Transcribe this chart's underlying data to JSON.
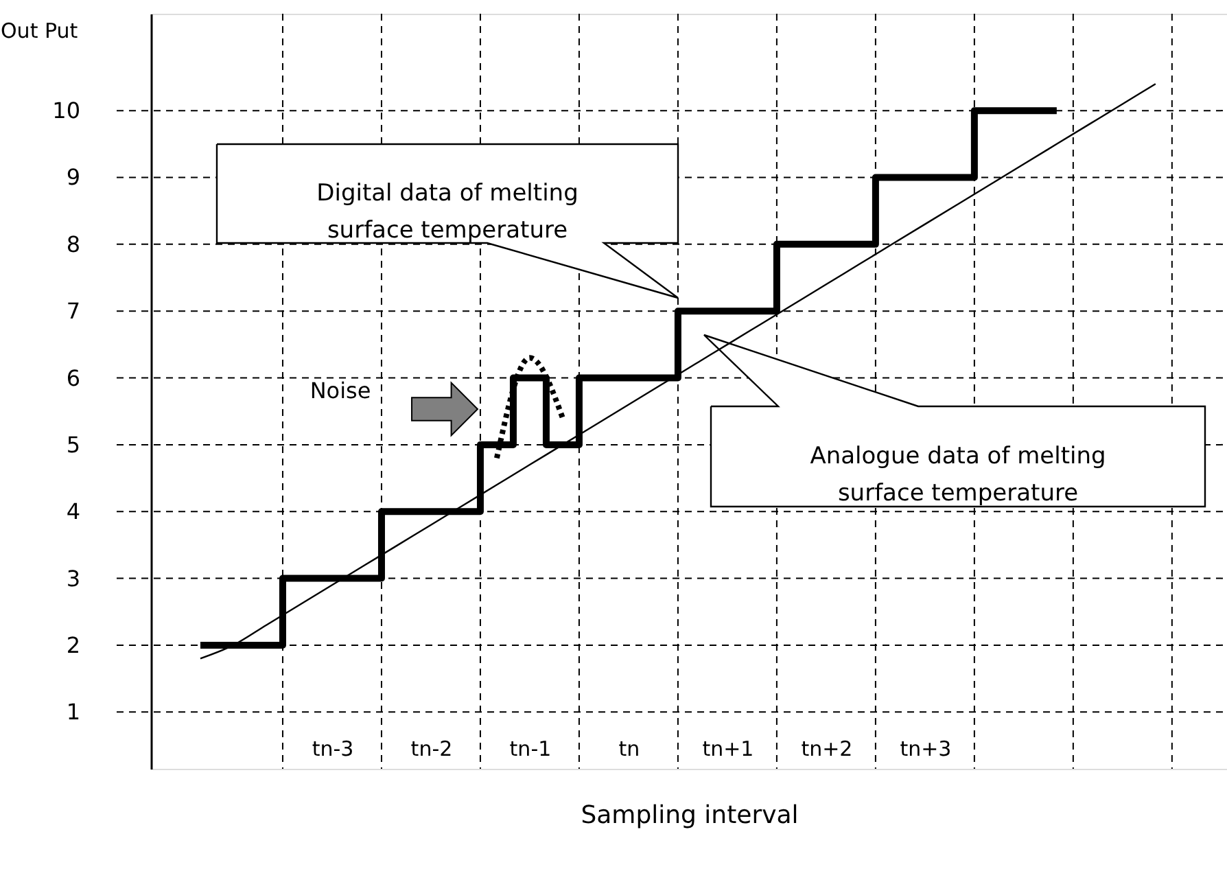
{
  "chart_data": {
    "type": "line",
    "xlabel": "Sampling interval",
    "ylabel": "Out Put",
    "categories": [
      null,
      null,
      null,
      null,
      "tn-3",
      null,
      null,
      "tn-2",
      null,
      null,
      "tn-1",
      null,
      null,
      "tn",
      null,
      null,
      "tn+1",
      null,
      null,
      "tn+2",
      null,
      null,
      "tn+3",
      null,
      null,
      null,
      null,
      null,
      null,
      null
    ],
    "ylim": [
      0.15,
      11.45
    ],
    "yticks": [
      1,
      2,
      3,
      4,
      5,
      6,
      7,
      8,
      9,
      10
    ],
    "grid": true,
    "marker": "none",
    "series": [
      {
        "type": "step",
        "color": "#000000",
        "line_style": "solid",
        "values": [
          2,
          2,
          2,
          3,
          3,
          3,
          4,
          4,
          4,
          5,
          6,
          5,
          6,
          6,
          6,
          7,
          7,
          7,
          8,
          8,
          8,
          9,
          9,
          9,
          10,
          10,
          10,
          null,
          null,
          null
        ]
      },
      {
        "color": "#000000",
        "line_style": "dotted",
        "values": [
          null,
          null,
          null,
          null,
          null,
          null,
          null,
          null,
          null,
          4.8,
          6.3,
          5.4,
          null,
          null,
          null,
          null,
          null,
          null,
          null,
          null,
          null,
          null,
          null,
          null,
          null,
          null,
          null,
          null,
          null,
          null
        ]
      },
      {
        "color": "#000000",
        "line_style": "solid",
        "values": [
          1.8,
          2.0,
          2.3,
          2.6,
          2.9,
          3.2,
          3.5,
          3.8,
          4.1,
          4.4,
          4.7,
          5.0,
          5.3,
          5.6,
          5.9,
          6.2,
          6.5,
          6.8,
          7.1,
          7.4,
          7.7,
          8.0,
          8.3,
          8.6,
          8.9,
          9.2,
          9.5,
          9.8,
          10.1,
          10.4
        ]
      }
    ],
    "annotations": [
      "Digital data of melting\nsurface temperature",
      "Analogue data of melting\nsurface temperature",
      "Noise"
    ]
  }
}
